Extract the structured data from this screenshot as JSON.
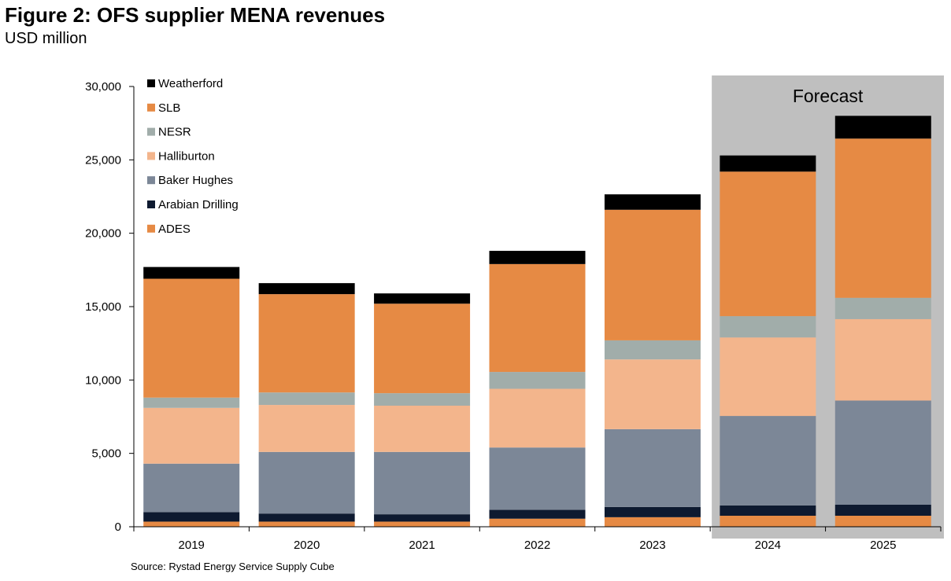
{
  "title": "Figure 2: OFS supplier MENA revenues",
  "subtitle": "USD million",
  "source": "Source: Rystad Energy Service Supply Cube",
  "forecast_label": "Forecast",
  "chart_data": {
    "type": "bar",
    "stacked": true,
    "categories": [
      "2019",
      "2020",
      "2021",
      "2022",
      "2023",
      "2024",
      "2025"
    ],
    "forecast_categories": [
      "2024",
      "2025"
    ],
    "ylim": [
      0,
      30000
    ],
    "yticks": [
      0,
      5000,
      10000,
      15000,
      20000,
      25000,
      30000
    ],
    "ytick_labels": [
      "0",
      "5,000",
      "10,000",
      "15,000",
      "20,000",
      "25,000",
      "30,000"
    ],
    "legend_position": "top-left",
    "grid": false,
    "series": [
      {
        "name": "ADES",
        "color": "#E68A44",
        "values": [
          350,
          350,
          350,
          550,
          650,
          750,
          750
        ]
      },
      {
        "name": "Arabian Drilling",
        "color": "#0E1A30",
        "values": [
          650,
          550,
          500,
          600,
          700,
          700,
          750
        ]
      },
      {
        "name": "Baker Hughes",
        "color": "#7C8797",
        "values": [
          3300,
          4200,
          4250,
          4250,
          5300,
          6100,
          7100
        ]
      },
      {
        "name": "Halliburton",
        "color": "#F3B58C",
        "values": [
          3800,
          3200,
          3150,
          4000,
          4750,
          5350,
          5550
        ]
      },
      {
        "name": "NESR",
        "color": "#A1ADAA",
        "values": [
          700,
          850,
          850,
          1150,
          1300,
          1450,
          1450
        ]
      },
      {
        "name": "SLB",
        "color": "#E68A44",
        "values": [
          8100,
          6700,
          6100,
          7350,
          8900,
          9850,
          10850
        ]
      },
      {
        "name": "Weatherford",
        "color": "#000000",
        "values": [
          800,
          750,
          700,
          900,
          1050,
          1100,
          1550
        ]
      }
    ]
  }
}
